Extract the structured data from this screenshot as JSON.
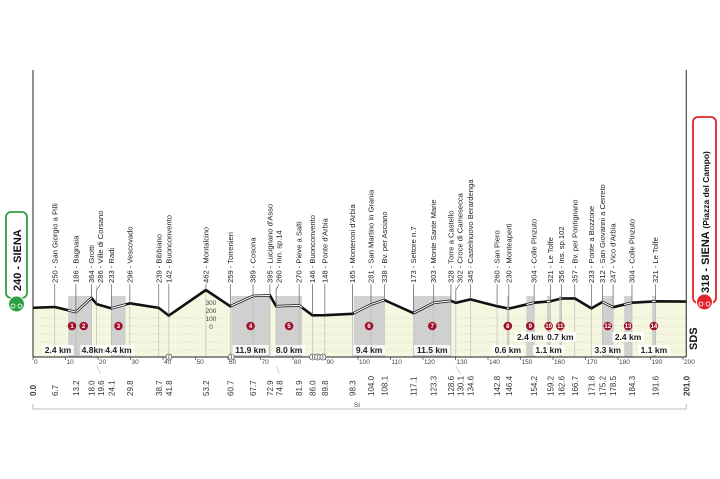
{
  "chart_data": {
    "type": "area",
    "xlabel": "",
    "ylabel": "",
    "xlim": [
      0,
      201
    ],
    "x_ticks": [
      0,
      10,
      20,
      30,
      40,
      50,
      60,
      70,
      80,
      90,
      100,
      110,
      120,
      130,
      140,
      150,
      160,
      170,
      180,
      190,
      200
    ],
    "elevation_scale": [
      300,
      200,
      100,
      0
    ],
    "start": {
      "elev": 240,
      "name": "SIENA",
      "label": "240 - SIENA"
    },
    "finish": {
      "elev": 318,
      "name": "SIENA",
      "sub": "(Piazza del Campo)",
      "label": "318 - SIENA"
    },
    "points": [
      {
        "km": "0.0",
        "elev": 240,
        "name": ""
      },
      {
        "km": "6.7",
        "elev": 250,
        "name": "San Giorgio a Pilli"
      },
      {
        "km": "13.2",
        "elev": 186,
        "name": "Bagnaia"
      },
      {
        "km": "18.0",
        "elev": 364,
        "name": "Grotti"
      },
      {
        "km": "19.6",
        "elev": 286,
        "name": "Ville di Corsano"
      },
      {
        "km": "24.1",
        "elev": 233,
        "name": "Radi"
      },
      {
        "km": "29.8",
        "elev": 296,
        "name": "Vescovado"
      },
      {
        "km": "38.7",
        "elev": 239,
        "name": "Bibbiano"
      },
      {
        "km": "41.8",
        "elev": 142,
        "name": "Buonconvento"
      },
      {
        "km": "53.2",
        "elev": 462,
        "name": "Montalcino"
      },
      {
        "km": "60.7",
        "elev": 259,
        "name": "Torrenieri"
      },
      {
        "km": "67.7",
        "elev": 389,
        "name": "Cosona"
      },
      {
        "km": "72.9",
        "elev": 395,
        "name": "Lucignano d'Asso"
      },
      {
        "km": "74.8",
        "elev": 260,
        "name": "Inn. sp.14"
      },
      {
        "km": "81.9",
        "elev": 270,
        "name": "Pieve a Salti"
      },
      {
        "km": "86.0",
        "elev": 146,
        "name": "Buonconvento"
      },
      {
        "km": "89.8",
        "elev": 148,
        "name": "Ponte d'Arbia"
      },
      {
        "km": "98.3",
        "elev": 165,
        "name": "Monteroni d'Arbia"
      },
      {
        "km": "104.0",
        "elev": 281,
        "name": "San Martino in Grania"
      },
      {
        "km": "108.1",
        "elev": 338,
        "name": "Bv. per Asciano"
      },
      {
        "km": "117.1",
        "elev": 173,
        "name": "Settore n.7"
      },
      {
        "km": "123.3",
        "elev": 303,
        "name": "Monte Sante Marie"
      },
      {
        "km": "128.6",
        "elev": 328,
        "name": "Torre a Castello"
      },
      {
        "km": "130.1",
        "elev": 302,
        "name": "Croce di Camesecca"
      },
      {
        "km": "134.6",
        "elev": 345,
        "name": "Castelnuovo Berardenga"
      },
      {
        "km": "142.8",
        "elev": 260,
        "name": "San Piero"
      },
      {
        "km": "146.4",
        "elev": 230,
        "name": "Monteaperti"
      },
      {
        "km": "154.2",
        "elev": 304,
        "name": "Colle Pinzuto"
      },
      {
        "km": "159.2",
        "elev": 321,
        "name": "Le Tolfe"
      },
      {
        "km": "162.6",
        "elev": 356,
        "name": "Ins. sp.102"
      },
      {
        "km": "166.7",
        "elev": 357,
        "name": "Bv. per Pontignano"
      },
      {
        "km": "171.8",
        "elev": 233,
        "name": "Ponte a Bozzone"
      },
      {
        "km": "175.2",
        "elev": 312,
        "name": "San Giovanni a Cerreto"
      },
      {
        "km": "178.5",
        "elev": 247,
        "name": "Vico d'Arbia"
      },
      {
        "km": "184.3",
        "elev": 304,
        "name": "Colle Pinzuto"
      },
      {
        "km": "191.6",
        "elev": 321,
        "name": "Le Tolfe"
      },
      {
        "km": "201.0",
        "elev": 318,
        "name": ""
      }
    ],
    "sectors": [
      {
        "n": "1",
        "from": 10.8,
        "to": 13.2,
        "length": "2.4 km"
      },
      {
        "n": "2",
        "from": 13.2,
        "to": 18.0,
        "length": "4.8km"
      },
      {
        "n": "3",
        "from": 24.1,
        "to": 28.5,
        "length": "4.4 km"
      },
      {
        "n": "4",
        "from": 61.0,
        "to": 72.9,
        "length": "11.9 km"
      },
      {
        "n": "5",
        "from": 74.8,
        "to": 82.8,
        "length": "8.0 km"
      },
      {
        "n": "6",
        "from": 98.7,
        "to": 108.1,
        "length": "9.4 km"
      },
      {
        "n": "7",
        "from": 117.1,
        "to": 128.6,
        "length": "11.5 km"
      },
      {
        "n": "8",
        "from": 145.8,
        "to": 146.4,
        "length": "0.6 km"
      },
      {
        "n": "9",
        "from": 151.8,
        "to": 154.2,
        "length": "2.4 km"
      },
      {
        "n": "10",
        "from": 158.1,
        "to": 159.2,
        "length": "1.1 km"
      },
      {
        "n": "11",
        "from": 161.9,
        "to": 162.6,
        "length": "0.7 km"
      },
      {
        "n": "12",
        "from": 175.2,
        "to": 178.5,
        "length": "3.3 km"
      },
      {
        "n": "13",
        "from": 181.9,
        "to": 184.3,
        "length": "2.4 km"
      },
      {
        "n": "14",
        "from": 190.5,
        "to": 191.6,
        "length": "1.1 km"
      }
    ],
    "level_crossings_km": [
      41.8,
      61.0,
      86.0,
      87.6,
      89.2
    ],
    "province_label": "SI",
    "logo": "SDS",
    "colors": {
      "fill": "#f6f7e0",
      "sector": "#c9c9cd",
      "start": "#2ea043",
      "finish": "#e0242b",
      "badge": "#a0142a"
    }
  }
}
